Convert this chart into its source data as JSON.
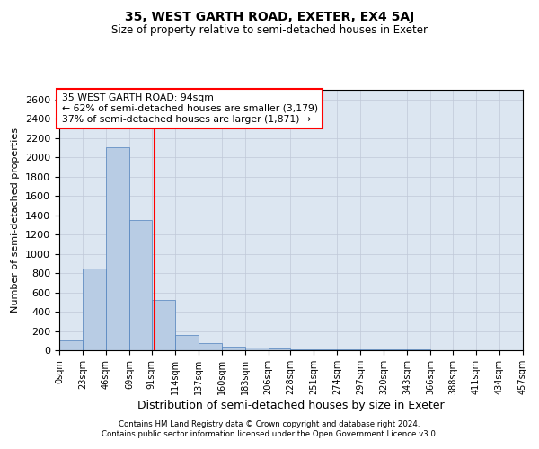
{
  "title1": "35, WEST GARTH ROAD, EXETER, EX4 5AJ",
  "title2": "Size of property relative to semi-detached houses in Exeter",
  "xlabel": "Distribution of semi-detached houses by size in Exeter",
  "ylabel": "Number of semi-detached properties",
  "footnote": "Contains HM Land Registry data © Crown copyright and database right 2024.\nContains public sector information licensed under the Open Government Licence v3.0.",
  "annotation_title": "35 WEST GARTH ROAD: 94sqm",
  "annotation_line1": "← 62% of semi-detached houses are smaller (3,179)",
  "annotation_line2": "37% of semi-detached houses are larger (1,871) →",
  "property_size": 94,
  "bin_edges": [
    0,
    23,
    46,
    69,
    91,
    114,
    137,
    160,
    183,
    206,
    228,
    251,
    274,
    297,
    320,
    343,
    366,
    388,
    411,
    434,
    457
  ],
  "bar_heights": [
    100,
    850,
    2100,
    1350,
    520,
    160,
    70,
    40,
    25,
    20,
    10,
    10,
    8,
    5,
    5,
    5,
    4,
    4,
    3,
    3
  ],
  "bar_color": "#b8cce4",
  "bar_edge_color": "#4f81bd",
  "grid_color": "#c0c8d8",
  "background_color": "#dce6f1",
  "annotation_box_color": "#ffffff",
  "annotation_box_edge": "#ff0000",
  "vline_color": "#ff0000",
  "ylim": [
    0,
    2700
  ],
  "yticks": [
    0,
    200,
    400,
    600,
    800,
    1000,
    1200,
    1400,
    1600,
    1800,
    2000,
    2200,
    2400,
    2600
  ],
  "fig_width": 6.0,
  "fig_height": 5.0,
  "dpi": 100
}
